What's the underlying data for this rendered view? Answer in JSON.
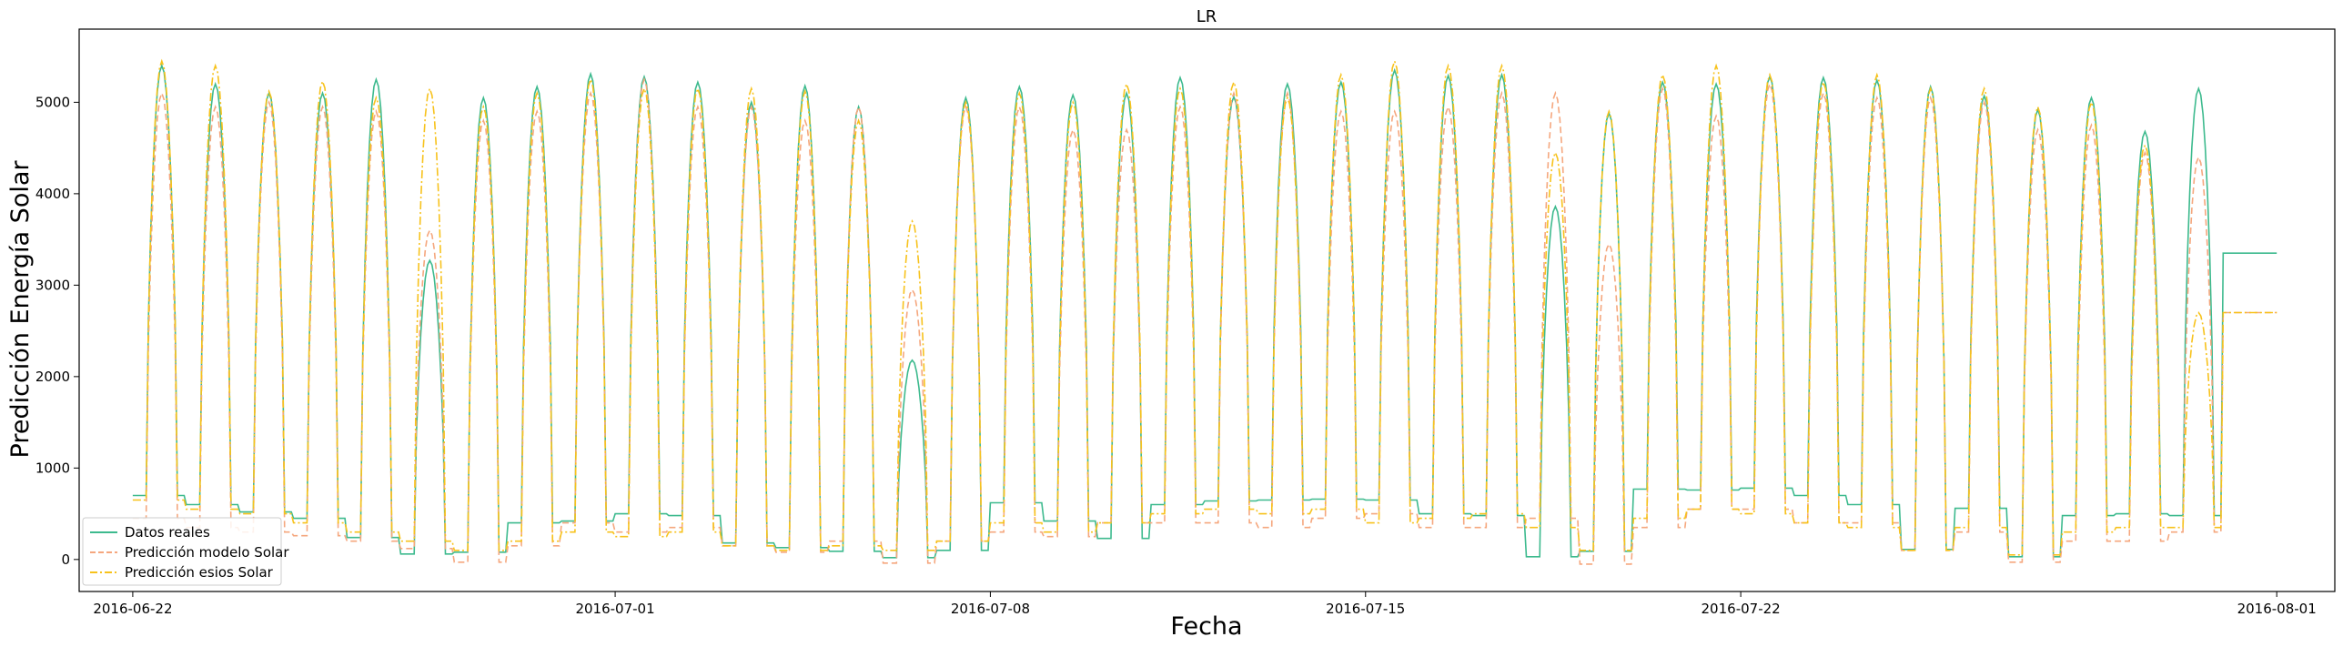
{
  "chart_data": {
    "type": "line",
    "title": "LR",
    "xlabel": "Fecha",
    "ylabel": "Predicción Energía Solar",
    "x_start": "2016-06-22T00:00",
    "x_end": "2016-08-01T00:00",
    "xlim": [
      "2016-06-21T00:00",
      "2016-08-02T02:00"
    ],
    "ylim": [
      -350,
      5800
    ],
    "x_ticks": [
      "2016-06-22",
      "2016-07-01",
      "2016-07-08",
      "2016-07-15",
      "2016-07-22",
      "2016-08-01"
    ],
    "y_ticks": [
      0,
      1000,
      2000,
      3000,
      4000,
      5000
    ],
    "grid": false,
    "legend_position": "lower-left",
    "series": [
      {
        "name": "Datos reales",
        "color": "#3dba8e",
        "linestyle": "solid",
        "daily_peak": [
          5400,
          5200,
          5100,
          5100,
          5250,
          3270,
          5050,
          5170,
          5310,
          5280,
          5220,
          5000,
          5180,
          4950,
          2180,
          5050,
          5170,
          5080,
          5100,
          5270,
          5060,
          5200,
          5220,
          5350,
          5290,
          5300,
          3860,
          4880,
          5220,
          5200,
          5280,
          5270,
          5240,
          5170,
          5070,
          4920,
          5050,
          4680,
          5150,
          3350
        ],
        "daily_night": [
          700,
          600,
          520,
          450,
          240,
          60,
          80,
          400,
          420,
          500,
          480,
          180,
          130,
          90,
          20,
          100,
          620,
          420,
          230,
          600,
          640,
          650,
          660,
          650,
          500,
          480,
          30,
          90,
          770,
          760,
          780,
          700,
          600,
          110,
          560,
          30,
          480,
          500,
          480,
          3350
        ]
      },
      {
        "name": "Predicción modelo Solar",
        "color": "#f5a77e",
        "linestyle": "dashed",
        "daily_peak": [
          5100,
          4950,
          5000,
          4950,
          4900,
          3600,
          4800,
          4900,
          5100,
          5250,
          4950,
          4950,
          4800,
          4950,
          2950,
          4950,
          4950,
          4700,
          4700,
          4950,
          5100,
          5100,
          4900,
          4900,
          4950,
          5100,
          5100,
          3450,
          5150,
          4850,
          5200,
          5100,
          5050,
          5050,
          5000,
          4700,
          4750,
          4450,
          4400,
          2700
        ],
        "daily_night": [
          450,
          350,
          300,
          260,
          200,
          120,
          -30,
          150,
          400,
          300,
          350,
          150,
          80,
          200,
          -40,
          200,
          300,
          250,
          400,
          400,
          400,
          350,
          450,
          500,
          350,
          350,
          450,
          -50,
          350,
          550,
          550,
          400,
          400,
          100,
          300,
          -30,
          200,
          200,
          300,
          2700
        ]
      },
      {
        "name": "Predicción esios Solar",
        "color": "#f7c21c",
        "linestyle": "dashdot",
        "daily_peak": [
          5450,
          5400,
          5120,
          5230,
          5050,
          5150,
          4950,
          5100,
          5250,
          5150,
          5150,
          5150,
          5120,
          4800,
          3700,
          5000,
          5100,
          5000,
          5200,
          5150,
          5220,
          5050,
          5300,
          5450,
          5400,
          5400,
          4450,
          4900,
          5300,
          5400,
          5300,
          5220,
          5300,
          5150,
          5150,
          4950,
          5000,
          4530,
          2700,
          2700
        ],
        "daily_night": [
          650,
          550,
          500,
          400,
          300,
          200,
          100,
          200,
          300,
          250,
          300,
          150,
          100,
          150,
          100,
          200,
          400,
          300,
          400,
          500,
          550,
          500,
          550,
          400,
          450,
          500,
          350,
          100,
          450,
          550,
          500,
          400,
          350,
          100,
          350,
          50,
          300,
          350,
          350,
          2700
        ]
      }
    ]
  },
  "legend": {
    "items": [
      "Datos reales",
      "Predicción modelo Solar",
      "Predicción esios Solar"
    ]
  }
}
